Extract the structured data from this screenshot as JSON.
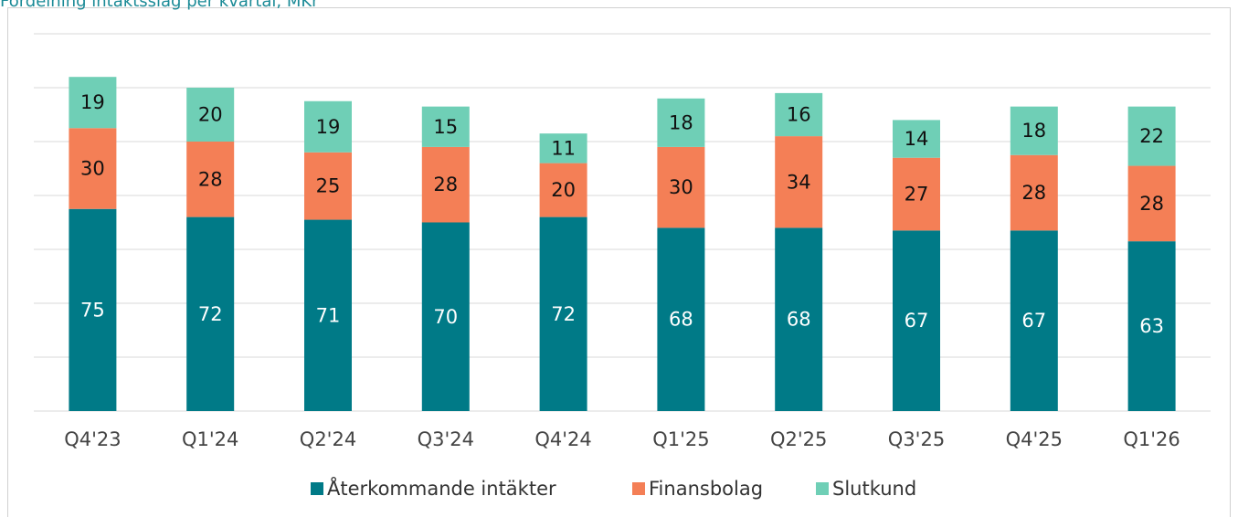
{
  "chart_data": {
    "type": "stacked_bar",
    "title": "Fördelning intäktsslag per kvartal, MKr",
    "categories": [
      "Q4'23",
      "Q1'24",
      "Q2'24",
      "Q3'24",
      "Q4'24",
      "Q1'25",
      "Q2'25",
      "Q3'25",
      "Q4'25",
      "Q1'26"
    ],
    "series": [
      {
        "name": "Återkommande intäkter",
        "color": "#007a87",
        "label_color": "#ffffff",
        "values": [
          75,
          72,
          71,
          70,
          72,
          68,
          68,
          67,
          67,
          63
        ]
      },
      {
        "name": "Finansbolag",
        "color": "#f47f56",
        "label_color": "#111111",
        "values": [
          30,
          28,
          25,
          28,
          20,
          30,
          34,
          27,
          28,
          28
        ]
      },
      {
        "name": "Slutkund",
        "color": "#6fcfb6",
        "label_color": "#111111",
        "values": [
          19,
          20,
          19,
          15,
          11,
          18,
          16,
          14,
          18,
          22
        ]
      }
    ],
    "ylim": [
      0,
      140
    ],
    "yticks": [
      0,
      20,
      40,
      60,
      80,
      100,
      120,
      140
    ],
    "grid": true,
    "legend": "bottom"
  }
}
